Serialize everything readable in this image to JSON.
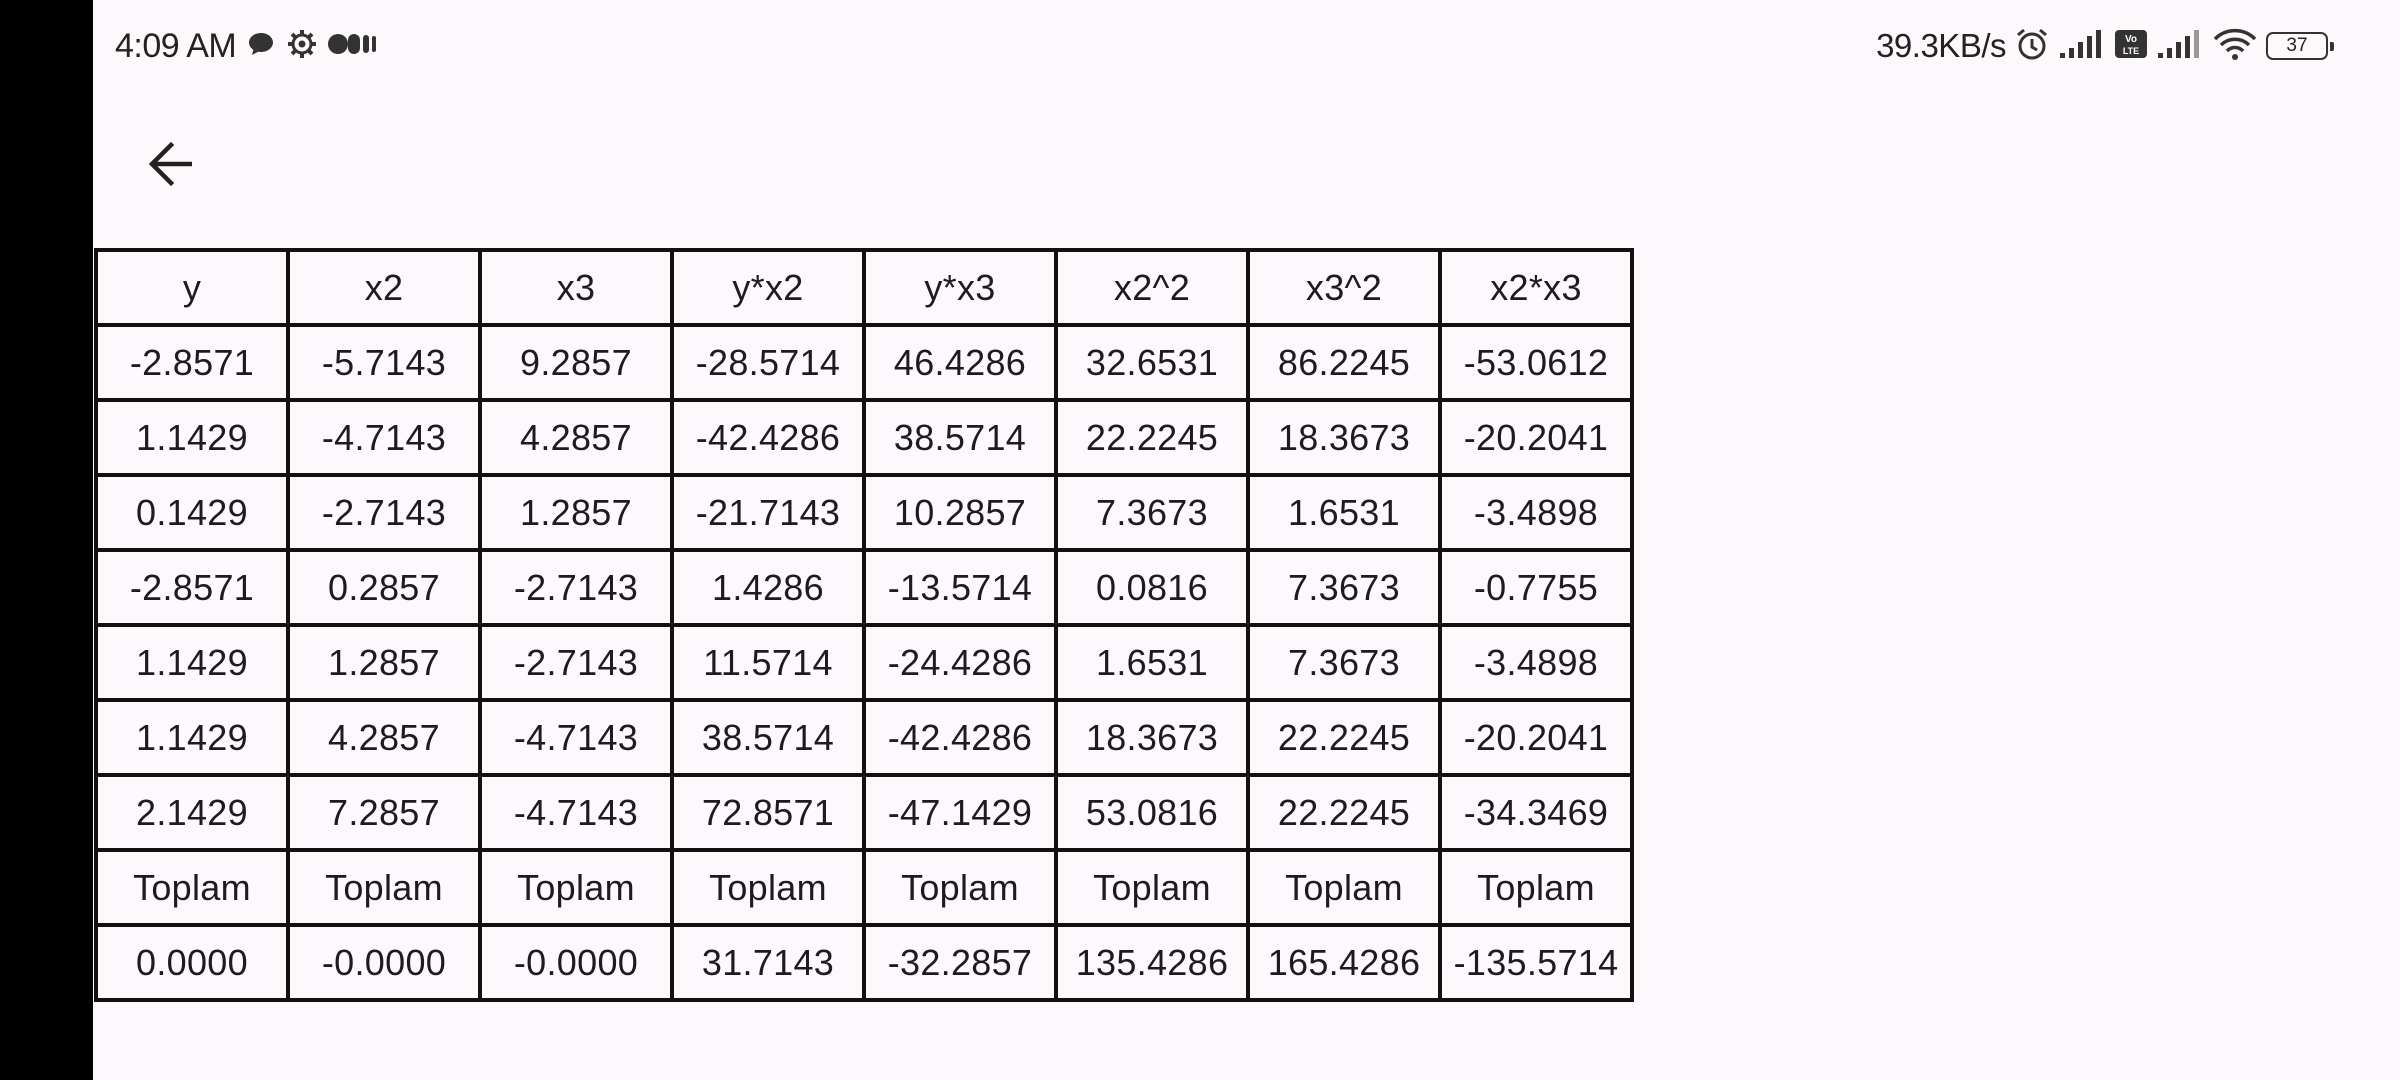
{
  "status_bar": {
    "time": "4:09 AM",
    "net_speed": "39.3KB/s",
    "battery": "37",
    "volte_label": "Vo LTE",
    "left_icons": [
      "chat-bubble-icon",
      "gear-icon",
      "media-dots-icon"
    ],
    "right_icons": [
      "alarm-icon",
      "signal-icon",
      "volte-icon",
      "signal-icon",
      "wifi-icon",
      "battery-icon"
    ]
  },
  "toolbar": {
    "back_icon": "arrow-left-icon"
  },
  "table": {
    "headers": [
      "y",
      "x2",
      "x3",
      "y*x2",
      "y*x3",
      "x2^2",
      "x3^2",
      "x2*x3"
    ],
    "rows": [
      [
        "-2.8571",
        "-5.7143",
        "9.2857",
        "-28.5714",
        "46.4286",
        "32.6531",
        "86.2245",
        "-53.0612"
      ],
      [
        "1.1429",
        "-4.7143",
        "4.2857",
        "-42.4286",
        "38.5714",
        "22.2245",
        "18.3673",
        "-20.2041"
      ],
      [
        "0.1429",
        "-2.7143",
        "1.2857",
        "-21.7143",
        "10.2857",
        "7.3673",
        "1.6531",
        "-3.4898"
      ],
      [
        "-2.8571",
        "0.2857",
        "-2.7143",
        "1.4286",
        "-13.5714",
        "0.0816",
        "7.3673",
        "-0.7755"
      ],
      [
        "1.1429",
        "1.2857",
        "-2.7143",
        "11.5714",
        "-24.4286",
        "1.6531",
        "7.3673",
        "-3.4898"
      ],
      [
        "1.1429",
        "4.2857",
        "-4.7143",
        "38.5714",
        "-42.4286",
        "18.3673",
        "22.2245",
        "-20.2041"
      ],
      [
        "2.1429",
        "7.2857",
        "-4.7143",
        "72.8571",
        "-47.1429",
        "53.0816",
        "22.2245",
        "-34.3469"
      ],
      [
        "Toplam",
        "Toplam",
        "Toplam",
        "Toplam",
        "Toplam",
        "Toplam",
        "Toplam",
        "Toplam"
      ],
      [
        "0.0000",
        "-0.0000",
        "-0.0000",
        "31.7143",
        "-32.2857",
        "135.4286",
        "165.4286",
        "-135.5714"
      ]
    ]
  }
}
